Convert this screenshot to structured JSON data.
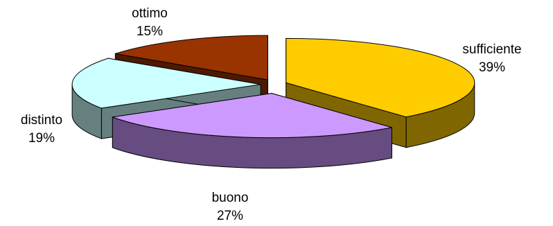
{
  "chart_data": {
    "type": "pie",
    "title": "",
    "slices": [
      {
        "label": "sufficiente",
        "value_label": "39%",
        "value": 39,
        "color": "#FFCC00",
        "side_color": "#806600"
      },
      {
        "label": "buono",
        "value_label": "27%",
        "value": 27,
        "color": "#CC99FF",
        "side_color": "#664C80"
      },
      {
        "label": "distinto",
        "value_label": "19%",
        "value": 19,
        "color": "#CCFFFF",
        "side_color": "#668080"
      },
      {
        "label": "ottimo",
        "value_label": "15%",
        "value": 15,
        "color": "#993300",
        "side_color": "#4D1A00"
      }
    ],
    "exploded": true,
    "three_d": true,
    "legend": "none"
  }
}
